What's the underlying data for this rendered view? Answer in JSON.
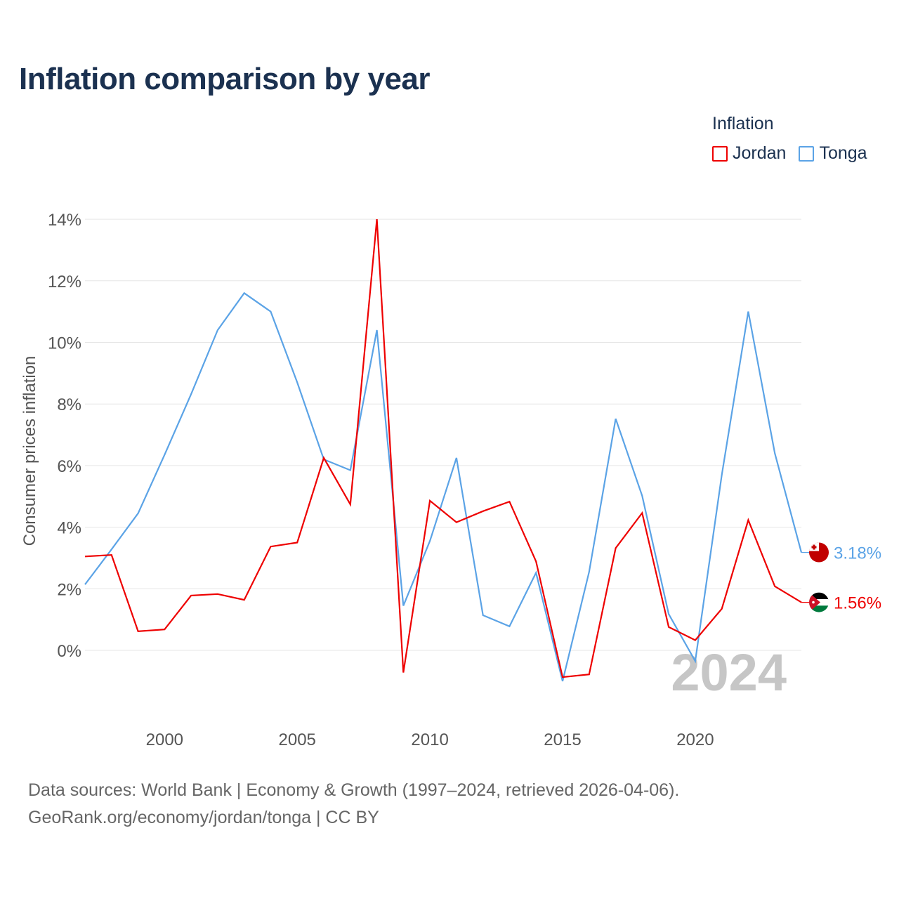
{
  "title": "Inflation comparison by year",
  "legend": {
    "title": "Inflation",
    "items": [
      {
        "name": "Jordan",
        "color": "#ee0000"
      },
      {
        "name": "Tonga",
        "color": "#5ba3e6"
      }
    ]
  },
  "source": {
    "line1": "Data sources: World Bank | Economy & Growth (1997–2024, retrieved 2026-04-06).",
    "line2": "GeoRank.org/economy/jordan/tonga | CC BY"
  },
  "chart_data": {
    "type": "line",
    "title": "Inflation comparison by year",
    "xlabel": "",
    "ylabel": "Consumer prices inflation",
    "xlim": [
      1997,
      2024
    ],
    "ylim": [
      -2,
      14
    ],
    "yticks": [
      0,
      2,
      4,
      6,
      8,
      10,
      12,
      14
    ],
    "ytick_labels": [
      "0%",
      "2%",
      "4%",
      "6%",
      "8%",
      "10%",
      "12%",
      "14%"
    ],
    "xticks": [
      2000,
      2005,
      2010,
      2015,
      2020
    ],
    "xtick_labels": [
      "2000",
      "2005",
      "2010",
      "2015",
      "2020"
    ],
    "grid": true,
    "year_watermark": "2024",
    "x": [
      1997,
      1998,
      1999,
      2000,
      2001,
      2002,
      2003,
      2004,
      2005,
      2006,
      2007,
      2008,
      2009,
      2010,
      2011,
      2012,
      2013,
      2014,
      2015,
      2016,
      2017,
      2018,
      2019,
      2020,
      2021,
      2022,
      2023,
      2024
    ],
    "series": [
      {
        "name": "Jordan",
        "color": "#ee0000",
        "end_label": "1.56%",
        "values": [
          3.05,
          3.1,
          0.62,
          0.68,
          1.78,
          1.83,
          1.64,
          3.37,
          3.5,
          6.25,
          4.74,
          14.0,
          -0.72,
          4.86,
          4.16,
          4.52,
          4.83,
          2.89,
          -0.87,
          -0.78,
          3.32,
          4.46,
          0.76,
          0.33,
          1.35,
          4.23,
          2.08,
          1.56
        ]
      },
      {
        "name": "Tonga",
        "color": "#5ba3e6",
        "end_label": "3.18%",
        "values": [
          2.14,
          3.28,
          4.45,
          6.35,
          8.32,
          10.4,
          11.6,
          11.0,
          8.7,
          6.2,
          5.85,
          10.4,
          1.45,
          3.55,
          6.25,
          1.14,
          0.78,
          2.52,
          -1.0,
          2.55,
          7.52,
          5.02,
          1.18,
          -0.35,
          5.7,
          11.0,
          6.4,
          3.18
        ]
      }
    ]
  }
}
